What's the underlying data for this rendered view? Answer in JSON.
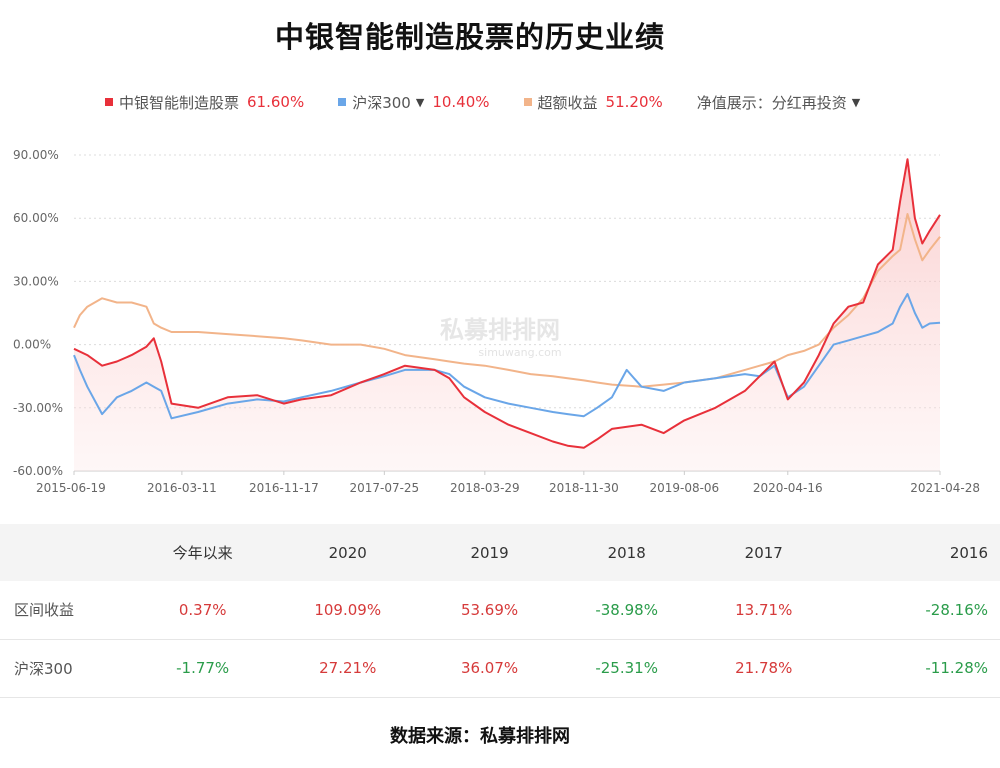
{
  "title": "中银智能制造股票的历史业绩",
  "legend": {
    "items": [
      {
        "name": "中银智能制造股票",
        "value": "61.60%",
        "color": "#e8303a",
        "value_color": "#e8303a",
        "caret": ""
      },
      {
        "name": "沪深300",
        "value": "10.40%",
        "color": "#6aa6e8",
        "value_color": "#e8303a",
        "caret": "▼"
      },
      {
        "name": "超额收益",
        "value": "51.20%",
        "color": "#f2b48a",
        "value_color": "#e8303a",
        "caret": ""
      }
    ],
    "display_label": "净值展示：分红再投资",
    "display_caret": "▼"
  },
  "watermark": {
    "main": "私募排排网",
    "sub": "simuwang.com"
  },
  "chart_data": {
    "type": "line",
    "y_ticks": [
      "90.00%",
      "60.00%",
      "30.00%",
      "0.00%",
      "-30.00%",
      "-60.00%"
    ],
    "ylim": [
      -60,
      90
    ],
    "x_ticks": [
      "2015-06-19",
      "2016-03-11",
      "2016-11-17",
      "2017-07-25",
      "2018-03-29",
      "2018-11-30",
      "2019-08-06",
      "2020-04-16",
      "2021-04-28"
    ],
    "x_tick_values": [
      2015.46,
      2016.19,
      2016.88,
      2017.56,
      2018.24,
      2018.91,
      2019.59,
      2020.29,
      2021.32
    ],
    "xlim": [
      2015.46,
      2021.32
    ],
    "grid": true,
    "series": [
      {
        "name": "中银智能制造股票",
        "color": "#e8303a",
        "fill": true,
        "x": [
          2015.46,
          2015.55,
          2015.65,
          2015.75,
          2015.85,
          2015.95,
          2016.0,
          2016.05,
          2016.12,
          2016.3,
          2016.5,
          2016.7,
          2016.88,
          2017.0,
          2017.2,
          2017.4,
          2017.56,
          2017.7,
          2017.9,
          2018.0,
          2018.1,
          2018.24,
          2018.4,
          2018.55,
          2018.7,
          2018.8,
          2018.91,
          2019.0,
          2019.1,
          2019.3,
          2019.45,
          2019.59,
          2019.8,
          2020.0,
          2020.1,
          2020.2,
          2020.29,
          2020.4,
          2020.5,
          2020.6,
          2020.7,
          2020.8,
          2020.9,
          2021.0,
          2021.05,
          2021.1,
          2021.15,
          2021.2,
          2021.25,
          2021.32
        ],
        "y": [
          -2,
          -5,
          -10,
          -8,
          -5,
          -1,
          3,
          -8,
          -28,
          -30,
          -25,
          -24,
          -28,
          -26,
          -24,
          -18,
          -14,
          -10,
          -12,
          -16,
          -25,
          -32,
          -38,
          -42,
          -46,
          -48,
          -49,
          -45,
          -40,
          -38,
          -42,
          -36,
          -30,
          -22,
          -15,
          -8,
          -26,
          -18,
          -5,
          10,
          18,
          20,
          38,
          45,
          68,
          88,
          60,
          48,
          54,
          61.6
        ]
      },
      {
        "name": "沪深300",
        "color": "#6aa6e8",
        "fill": false,
        "x": [
          2015.46,
          2015.5,
          2015.55,
          2015.65,
          2015.75,
          2015.85,
          2015.95,
          2016.0,
          2016.05,
          2016.12,
          2016.3,
          2016.5,
          2016.7,
          2016.88,
          2017.0,
          2017.2,
          2017.4,
          2017.56,
          2017.7,
          2017.9,
          2018.0,
          2018.1,
          2018.24,
          2018.4,
          2018.55,
          2018.7,
          2018.8,
          2018.91,
          2019.0,
          2019.1,
          2019.2,
          2019.3,
          2019.45,
          2019.59,
          2019.8,
          2020.0,
          2020.1,
          2020.2,
          2020.29,
          2020.4,
          2020.5,
          2020.6,
          2020.7,
          2020.8,
          2020.9,
          2021.0,
          2021.05,
          2021.1,
          2021.15,
          2021.2,
          2021.25,
          2021.32
        ],
        "y": [
          -5,
          -12,
          -20,
          -33,
          -25,
          -22,
          -18,
          -20,
          -22,
          -35,
          -32,
          -28,
          -26,
          -27,
          -25,
          -22,
          -18,
          -15,
          -12,
          -12,
          -14,
          -20,
          -25,
          -28,
          -30,
          -32,
          -33,
          -34,
          -30,
          -25,
          -12,
          -20,
          -22,
          -18,
          -16,
          -14,
          -15,
          -10,
          -25,
          -20,
          -10,
          0,
          2,
          4,
          6,
          10,
          18,
          24,
          15,
          8,
          10,
          10.4
        ]
      },
      {
        "name": "超额收益",
        "color": "#f2b48a",
        "fill": false,
        "x": [
          2015.46,
          2015.5,
          2015.55,
          2015.65,
          2015.75,
          2015.85,
          2015.95,
          2016.0,
          2016.05,
          2016.12,
          2016.3,
          2016.5,
          2016.7,
          2016.88,
          2017.0,
          2017.2,
          2017.4,
          2017.56,
          2017.7,
          2017.9,
          2018.0,
          2018.1,
          2018.24,
          2018.4,
          2018.55,
          2018.7,
          2018.8,
          2018.91,
          2019.0,
          2019.1,
          2019.3,
          2019.45,
          2019.59,
          2019.8,
          2020.0,
          2020.1,
          2020.2,
          2020.29,
          2020.4,
          2020.5,
          2020.6,
          2020.7,
          2020.8,
          2020.9,
          2021.0,
          2021.05,
          2021.1,
          2021.15,
          2021.2,
          2021.25,
          2021.32
        ],
        "y": [
          8,
          14,
          18,
          22,
          20,
          20,
          18,
          10,
          8,
          6,
          6,
          5,
          4,
          3,
          2,
          0,
          0,
          -2,
          -5,
          -7,
          -8,
          -9,
          -10,
          -12,
          -14,
          -15,
          -16,
          -17,
          -18,
          -19,
          -20,
          -19,
          -18,
          -16,
          -12,
          -10,
          -8,
          -5,
          -3,
          0,
          8,
          14,
          22,
          35,
          42,
          45,
          62,
          50,
          40,
          45,
          51.2
        ]
      }
    ]
  },
  "stats_table": {
    "headers": [
      "",
      "今年以来",
      "2020",
      "2019",
      "2018",
      "2017",
      "2016"
    ],
    "rows": [
      {
        "label": "区间收益",
        "cells": [
          {
            "text": "0.37%",
            "sign": "pos"
          },
          {
            "text": "109.09%",
            "sign": "pos"
          },
          {
            "text": "53.69%",
            "sign": "pos"
          },
          {
            "text": "-38.98%",
            "sign": "neg"
          },
          {
            "text": "13.71%",
            "sign": "pos"
          },
          {
            "text": "-28.16%",
            "sign": "neg"
          }
        ]
      },
      {
        "label": "沪深300",
        "cells": [
          {
            "text": "-1.77%",
            "sign": "neg"
          },
          {
            "text": "27.21%",
            "sign": "pos"
          },
          {
            "text": "36.07%",
            "sign": "pos"
          },
          {
            "text": "-25.31%",
            "sign": "neg"
          },
          {
            "text": "21.78%",
            "sign": "pos"
          },
          {
            "text": "-11.28%",
            "sign": "neg"
          }
        ]
      }
    ]
  },
  "source": "数据来源：私募排排网"
}
